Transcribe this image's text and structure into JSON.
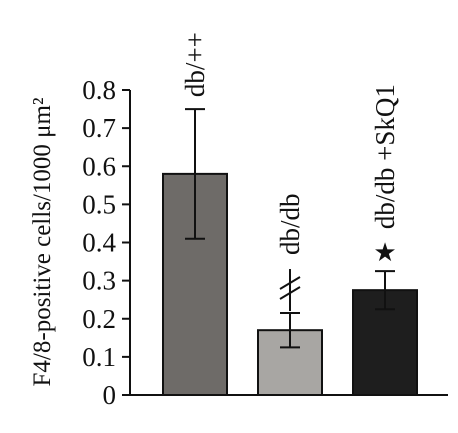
{
  "chart_data": {
    "type": "bar",
    "ylabel": "F4/8-positive cells/1000 μm²",
    "ylim": [
      0,
      0.8
    ],
    "yticks": [
      "0",
      "0.1",
      "0.2",
      "0.3",
      "0.4",
      "0.5",
      "0.6",
      "0.7",
      "0.8"
    ],
    "categories": [
      "db/++",
      "db/db",
      "db/db +SkQ1"
    ],
    "values": [
      0.58,
      0.17,
      0.275
    ],
    "errors": [
      0.17,
      0.045,
      0.05
    ],
    "colors": [
      "#6e6b68",
      "#a8a6a3",
      "#1e1e1e"
    ],
    "significance_marks": [
      "",
      "≠",
      "★"
    ]
  }
}
